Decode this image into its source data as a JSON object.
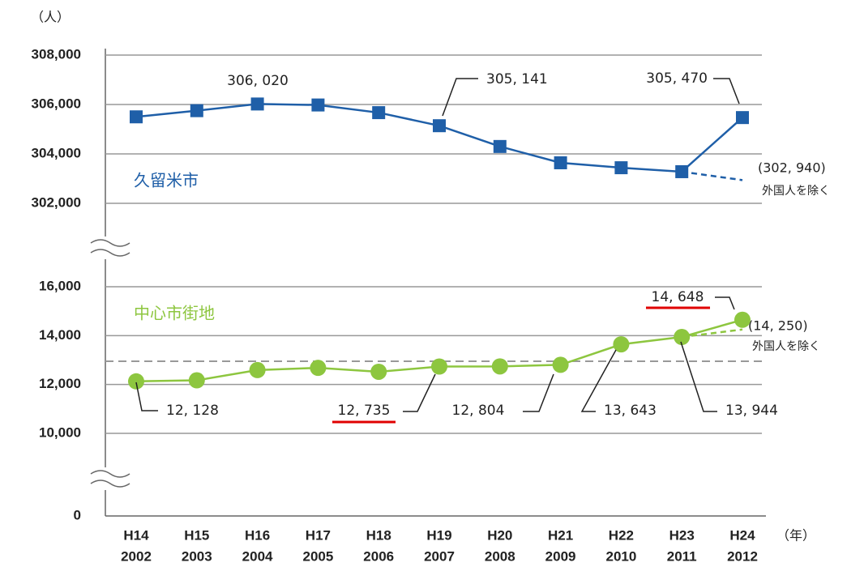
{
  "unit_label": "（人）",
  "x_unit": "（年）",
  "y_origin_label": 0,
  "chart_data": [
    {
      "type": "line",
      "categories": [
        "H14",
        "H15",
        "H16",
        "H17",
        "H18",
        "H19",
        "H20",
        "H21",
        "H22",
        "H23",
        "H24"
      ],
      "years": [
        "2002",
        "2003",
        "2004",
        "2005",
        "2006",
        "2007",
        "2008",
        "2009",
        "2010",
        "2011",
        "2012"
      ],
      "ylim": [
        302000,
        308000
      ],
      "yticks": [
        {
          "value": 302000,
          "label": "302,000"
        },
        {
          "value": 304000,
          "label": "304,000"
        },
        {
          "value": 306000,
          "label": "306,000"
        },
        {
          "value": 308000,
          "label": "308,000"
        }
      ],
      "grid": true,
      "series": [
        {
          "name": "久留米市",
          "color": "#1f5fa8",
          "marker": "square",
          "values": [
            305500,
            305750,
            306020,
            305980,
            305670,
            305141,
            304300,
            303640,
            303440,
            303280,
            305470
          ],
          "value_labels": [
            null,
            null,
            "306, 020",
            null,
            null,
            "305, 141",
            null,
            null,
            null,
            null,
            "305, 470"
          ]
        },
        {
          "name": "外国人を除く",
          "color": "#1f5fa8",
          "dashed": true,
          "values": [
            null,
            null,
            null,
            null,
            null,
            null,
            null,
            null,
            null,
            null,
            302940
          ],
          "value_labels": [
            null,
            null,
            null,
            null,
            null,
            null,
            null,
            null,
            null,
            null,
            "(302, 940)"
          ]
        }
      ]
    },
    {
      "type": "line",
      "categories": [
        "H14",
        "H15",
        "H16",
        "H17",
        "H18",
        "H19",
        "H20",
        "H21",
        "H22",
        "H23",
        "H24"
      ],
      "ylim": [
        10000,
        16000
      ],
      "yticks": [
        {
          "value": 10000,
          "label": "10,000"
        },
        {
          "value": 12000,
          "label": "12,000"
        },
        {
          "value": 14000,
          "label": "14,000"
        },
        {
          "value": 16000,
          "label": "16,000"
        }
      ],
      "grid": true,
      "reference_line": 12950,
      "series": [
        {
          "name": "中心市街地",
          "color": "#8dc63f",
          "marker": "circle",
          "values": [
            12128,
            12170,
            12590,
            12680,
            12520,
            12735,
            12740,
            12804,
            13643,
            13944,
            14648
          ],
          "value_labels": [
            "12, 128",
            null,
            null,
            null,
            null,
            "12, 735",
            null,
            "12, 804",
            "13, 643",
            "13, 944",
            "14, 648"
          ]
        },
        {
          "name": "外国人を除く",
          "color": "#8dc63f",
          "dashed": true,
          "values": [
            null,
            null,
            null,
            null,
            null,
            null,
            null,
            null,
            null,
            null,
            14250
          ],
          "value_labels": [
            null,
            null,
            null,
            null,
            null,
            null,
            null,
            null,
            null,
            null,
            "(14, 250)"
          ]
        }
      ]
    }
  ]
}
